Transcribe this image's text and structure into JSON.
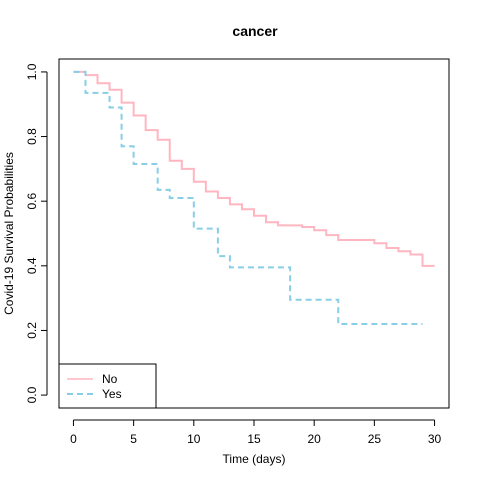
{
  "chart_data": {
    "type": "line",
    "title": "cancer",
    "xlabel": "Time (days)",
    "ylabel": "Covid-19 Survival Probabilities",
    "xlim": [
      -1.2,
      31.2
    ],
    "ylim": [
      -0.04,
      1.04
    ],
    "xticks": [
      "0",
      "5",
      "10",
      "15",
      "20",
      "25",
      "30"
    ],
    "yticks": [
      "0.0",
      "0.2",
      "0.4",
      "0.6",
      "0.8",
      "1.0"
    ],
    "grid": false,
    "legend_position": "bottom-left",
    "series": [
      {
        "name": "No",
        "color": "#ffb6c1",
        "style": "solid",
        "steps": [
          [
            0,
            1.0
          ],
          [
            1,
            0.99
          ],
          [
            2,
            0.965
          ],
          [
            3,
            0.945
          ],
          [
            4,
            0.905
          ],
          [
            5,
            0.865
          ],
          [
            6,
            0.82
          ],
          [
            7,
            0.79
          ],
          [
            8,
            0.725
          ],
          [
            9,
            0.7
          ],
          [
            10,
            0.66
          ],
          [
            11,
            0.63
          ],
          [
            12,
            0.61
          ],
          [
            13,
            0.59
          ],
          [
            14,
            0.575
          ],
          [
            15,
            0.555
          ],
          [
            16,
            0.535
          ],
          [
            17,
            0.525
          ],
          [
            19,
            0.52
          ],
          [
            20,
            0.51
          ],
          [
            21,
            0.495
          ],
          [
            22,
            0.48
          ],
          [
            25,
            0.47
          ],
          [
            26,
            0.455
          ],
          [
            27,
            0.445
          ],
          [
            28,
            0.435
          ],
          [
            29,
            0.4
          ],
          [
            30,
            0.4
          ]
        ]
      },
      {
        "name": "Yes",
        "color": "#87cee6",
        "style": "dashed",
        "steps": [
          [
            0,
            1.0
          ],
          [
            1,
            0.935
          ],
          [
            3,
            0.89
          ],
          [
            4,
            0.77
          ],
          [
            5,
            0.715
          ],
          [
            7,
            0.635
          ],
          [
            8,
            0.61
          ],
          [
            10,
            0.515
          ],
          [
            12,
            0.43
          ],
          [
            13,
            0.395
          ],
          [
            18,
            0.295
          ],
          [
            22,
            0.22
          ],
          [
            29,
            0.22
          ]
        ]
      }
    ]
  }
}
